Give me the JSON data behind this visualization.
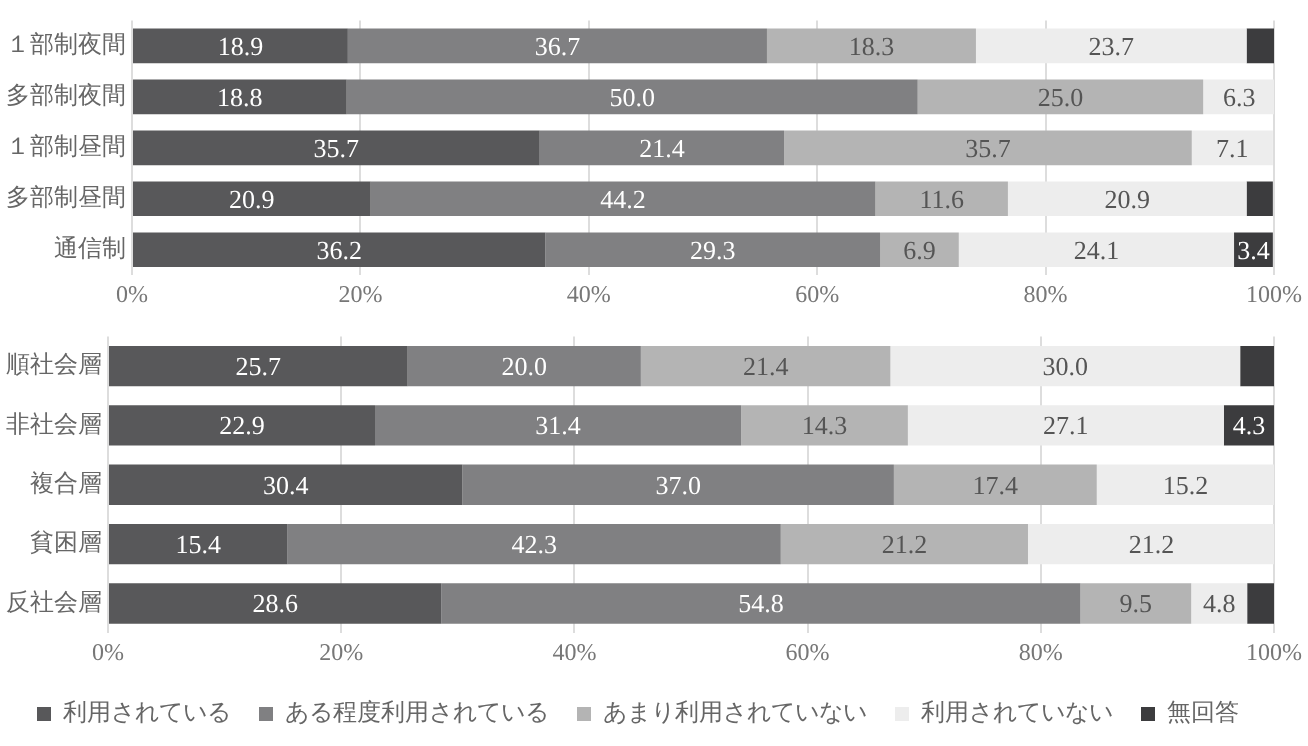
{
  "chart_data": [
    {
      "type": "bar",
      "orientation": "horizontal",
      "stacked": true,
      "categories": [
        "１部制夜間",
        "多部制夜間",
        "１部制昼間",
        "多部制昼間",
        "通信制"
      ],
      "xlim": [
        0,
        100
      ],
      "xticks": [
        {
          "value": 0,
          "label": "0%"
        },
        {
          "value": 20,
          "label": "20%"
        },
        {
          "value": 40,
          "label": "40%"
        },
        {
          "value": 60,
          "label": "60%"
        },
        {
          "value": 80,
          "label": "80%"
        },
        {
          "value": 100,
          "label": "100%"
        }
      ],
      "grid": "x",
      "legend": false,
      "series": [
        {
          "color": "#58585a",
          "values": [
            18.9,
            18.8,
            35.7,
            20.9,
            36.2
          ],
          "value_labels": [
            "18.9",
            "18.8",
            "35.7",
            "20.9",
            "36.2"
          ]
        },
        {
          "color": "#808082",
          "values": [
            36.7,
            50.0,
            21.4,
            44.2,
            29.3
          ],
          "value_labels": [
            "36.7",
            "50.0",
            "21.4",
            "44.2",
            "29.3"
          ]
        },
        {
          "color": "#b4b4b4",
          "values": [
            18.3,
            25.0,
            35.7,
            11.6,
            6.9
          ],
          "value_labels": [
            "18.3",
            "25.0",
            "35.7",
            "11.6",
            "6.9"
          ]
        },
        {
          "color": "#ededed",
          "values": [
            23.7,
            6.3,
            7.1,
            20.9,
            24.1
          ],
          "value_labels": [
            "23.7",
            "6.3",
            "7.1",
            "20.9",
            "24.1"
          ]
        },
        {
          "color": "#3c3c3e",
          "values": [
            2.4,
            null,
            null,
            2.3,
            3.4
          ],
          "value_labels": [
            null,
            null,
            null,
            null,
            "3.4"
          ]
        }
      ]
    },
    {
      "type": "bar",
      "orientation": "horizontal",
      "stacked": true,
      "categories": [
        "順社会層",
        "非社会層",
        "複合層",
        "貧困層",
        "反社会層"
      ],
      "xlim": [
        0,
        100
      ],
      "xticks": [
        {
          "value": 0,
          "label": "0%"
        },
        {
          "value": 20,
          "label": "20%"
        },
        {
          "value": 40,
          "label": "40%"
        },
        {
          "value": 60,
          "label": "60%"
        },
        {
          "value": 80,
          "label": "80%"
        },
        {
          "value": 100,
          "label": "100%"
        }
      ],
      "grid": "x",
      "legend": "bottom",
      "series": [
        {
          "name": "利用されている",
          "color": "#58585a",
          "values": [
            25.7,
            22.9,
            30.4,
            15.4,
            28.6
          ],
          "value_labels": [
            "25.7",
            "22.9",
            "30.4",
            "15.4",
            "28.6"
          ]
        },
        {
          "name": "ある程度利用されている",
          "color": "#808082",
          "values": [
            20.0,
            31.4,
            37.0,
            42.3,
            54.8
          ],
          "value_labels": [
            "20.0",
            "31.4",
            "37.0",
            "42.3",
            "54.8"
          ]
        },
        {
          "name": "あまり利用されていない",
          "color": "#b4b4b4",
          "values": [
            21.4,
            14.3,
            17.4,
            21.2,
            9.5
          ],
          "value_labels": [
            "21.4",
            "14.3",
            "17.4",
            "21.2",
            "9.5"
          ]
        },
        {
          "name": "利用されていない",
          "color": "#ededed",
          "values": [
            30.0,
            27.1,
            15.2,
            21.2,
            4.8
          ],
          "value_labels": [
            "30.0",
            "27.1",
            "15.2",
            "21.2",
            "4.8"
          ]
        },
        {
          "name": "無回答",
          "color": "#3c3c3e",
          "values": [
            2.9,
            4.3,
            null,
            null,
            2.3
          ],
          "value_labels": [
            null,
            "4.3",
            null,
            null,
            null
          ]
        }
      ]
    }
  ]
}
